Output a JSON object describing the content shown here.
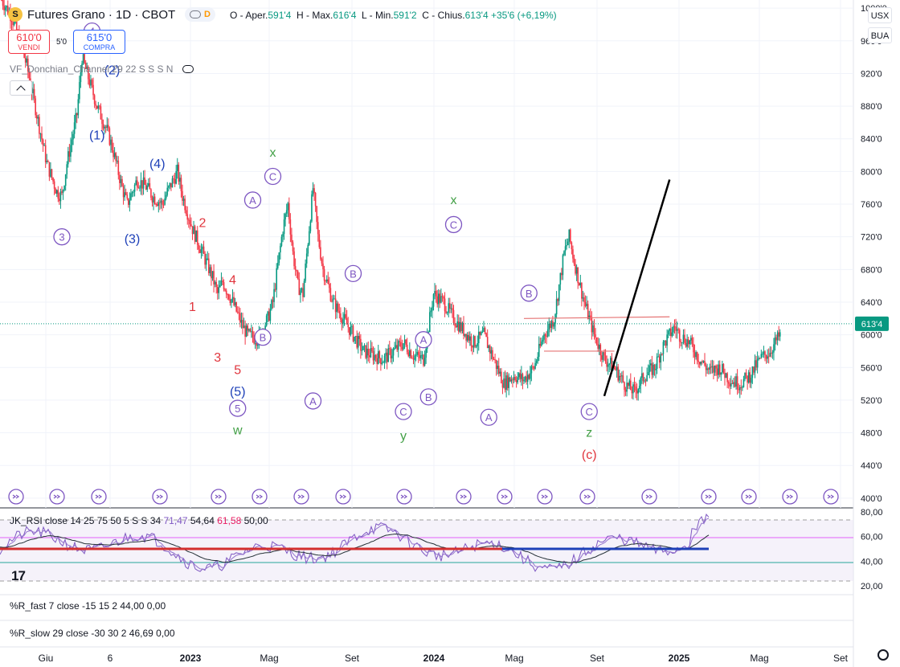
{
  "header": {
    "logo_glyph": "S",
    "title": "Futures Grano · 1D · CBOT",
    "source_badge": "D",
    "ohlc": {
      "open_label": "O - Aper.",
      "open": "591'4",
      "high_label": "H - Max.",
      "high": "616'4",
      "low_label": "L - Min.",
      "low": "591'2",
      "close_label": "C - Chius.",
      "close": "613'4",
      "change": "+35'6 (+6,19%)"
    }
  },
  "trade": {
    "sell_price": "610'0",
    "sell_label": "VENDI",
    "spread": "5'0",
    "buy_price": "615'0",
    "buy_label": "COMPRA"
  },
  "indicator_label": "VF_Donchian_Channel 29 22 S S S N",
  "currency": "USX",
  "unit": "BUA",
  "colors": {
    "up": "#089981",
    "down": "#f23645",
    "wave_purple": "#7e57c2",
    "wave_blue": "#1e40b8",
    "wave_red": "#e0353d",
    "wave_green": "#43a047",
    "last_price": "#089981"
  },
  "chart_data": {
    "type": "candlestick",
    "y_axis": {
      "ticks": [
        "1000'0",
        "960'0",
        "920'0",
        "880'0",
        "840'0",
        "800'0",
        "760'0",
        "720'0",
        "680'0",
        "640'0",
        "600'0",
        "560'0",
        "520'0",
        "480'0",
        "440'0",
        "400'0"
      ],
      "range": [
        390,
        1010
      ]
    },
    "x_axis": {
      "ticks": [
        "Giu",
        "6",
        "2023",
        "Mag",
        "Set",
        "2024",
        "Mag",
        "Set",
        "2025",
        "Mag",
        "Set"
      ]
    },
    "last_price_label": "613'4",
    "last_price": 613.5,
    "price_path": [
      [
        0,
        1010
      ],
      [
        2,
        990
      ],
      [
        5,
        930
      ],
      [
        7,
        870
      ],
      [
        9,
        810
      ],
      [
        11,
        775
      ],
      [
        12,
        770
      ],
      [
        13,
        810
      ],
      [
        15,
        870
      ],
      [
        16,
        940
      ],
      [
        18,
        900
      ],
      [
        19,
        880
      ],
      [
        21,
        850
      ],
      [
        22,
        830
      ],
      [
        24,
        780
      ],
      [
        25,
        760
      ],
      [
        27,
        790
      ],
      [
        29,
        780
      ],
      [
        30,
        770
      ],
      [
        32,
        760
      ],
      [
        33,
        775
      ],
      [
        35,
        800
      ],
      [
        36,
        770
      ],
      [
        38,
        730
      ],
      [
        40,
        700
      ],
      [
        42,
        670
      ],
      [
        43,
        650
      ],
      [
        44,
        665
      ],
      [
        46,
        640
      ],
      [
        48,
        610
      ],
      [
        49,
        600
      ],
      [
        51,
        595
      ],
      [
        53,
        620
      ],
      [
        54,
        640
      ],
      [
        56,
        730
      ],
      [
        57,
        760
      ],
      [
        58,
        700
      ],
      [
        59,
        660
      ],
      [
        60,
        650
      ],
      [
        62,
        780
      ],
      [
        63,
        720
      ],
      [
        64,
        680
      ],
      [
        66,
        640
      ],
      [
        68,
        620
      ],
      [
        70,
        600
      ],
      [
        72,
        580
      ],
      [
        74,
        575
      ],
      [
        76,
        570
      ],
      [
        78,
        580
      ],
      [
        80,
        590
      ],
      [
        82,
        575
      ],
      [
        84,
        570
      ],
      [
        86,
        650
      ],
      [
        88,
        640
      ],
      [
        90,
        620
      ],
      [
        92,
        605
      ],
      [
        94,
        590
      ],
      [
        96,
        600
      ],
      [
        98,
        570
      ],
      [
        100,
        540
      ],
      [
        102,
        550
      ],
      [
        104,
        545
      ],
      [
        106,
        560
      ],
      [
        108,
        600
      ],
      [
        110,
        620
      ],
      [
        112,
        700
      ],
      [
        113,
        720
      ],
      [
        114,
        690
      ],
      [
        116,
        640
      ],
      [
        118,
        600
      ],
      [
        120,
        570
      ],
      [
        122,
        560
      ],
      [
        124,
        540
      ],
      [
        126,
        530
      ],
      [
        128,
        550
      ],
      [
        130,
        560
      ],
      [
        132,
        590
      ],
      [
        134,
        610
      ],
      [
        135,
        600
      ],
      [
        137,
        590
      ],
      [
        139,
        570
      ],
      [
        141,
        555
      ],
      [
        143,
        560
      ],
      [
        145,
        545
      ],
      [
        147,
        540
      ],
      [
        149,
        550
      ],
      [
        151,
        570
      ],
      [
        153,
        580
      ],
      [
        155,
        600
      ]
    ],
    "wave_labels": [
      {
        "text": "4",
        "style": "circle",
        "color": "purple",
        "x": 18,
        "y": 972
      },
      {
        "text": "(2)",
        "style": "plain",
        "color": "blue",
        "x": 22,
        "y": 925
      },
      {
        "text": "(1)",
        "style": "plain",
        "color": "blue",
        "x": 19,
        "y": 845
      },
      {
        "text": "(4)",
        "style": "plain",
        "color": "blue",
        "x": 31,
        "y": 810
      },
      {
        "text": "3",
        "style": "circle",
        "color": "purple",
        "x": 12,
        "y": 720
      },
      {
        "text": "(3)",
        "style": "plain",
        "color": "blue",
        "x": 26,
        "y": 718
      },
      {
        "text": "2",
        "style": "plain",
        "color": "red",
        "x": 40,
        "y": 738
      },
      {
        "text": "1",
        "style": "plain",
        "color": "red",
        "x": 38,
        "y": 635
      },
      {
        "text": "4",
        "style": "plain",
        "color": "red",
        "x": 46,
        "y": 668
      },
      {
        "text": "3",
        "style": "plain",
        "color": "red",
        "x": 43,
        "y": 573
      },
      {
        "text": "5",
        "style": "plain",
        "color": "red",
        "x": 47,
        "y": 558
      },
      {
        "text": "(5)",
        "style": "plain",
        "color": "blue",
        "x": 47,
        "y": 531
      },
      {
        "text": "5",
        "style": "circle",
        "color": "purple",
        "x": 47,
        "y": 510
      },
      {
        "text": "w",
        "style": "plain",
        "color": "green",
        "x": 47,
        "y": 484
      },
      {
        "text": "A",
        "style": "circle",
        "color": "purple",
        "x": 50,
        "y": 765
      },
      {
        "text": "C",
        "style": "circle",
        "color": "purple",
        "x": 54,
        "y": 794
      },
      {
        "text": "x",
        "style": "plain",
        "color": "green",
        "x": 54,
        "y": 824
      },
      {
        "text": "B",
        "style": "circle",
        "color": "purple",
        "x": 52,
        "y": 597
      },
      {
        "text": "A",
        "style": "circle",
        "color": "purple",
        "x": 62,
        "y": 519
      },
      {
        "text": "B",
        "style": "circle",
        "color": "purple",
        "x": 70,
        "y": 675
      },
      {
        "text": "A",
        "style": "circle",
        "color": "purple",
        "x": 84,
        "y": 594
      },
      {
        "text": "B",
        "style": "circle",
        "color": "purple",
        "x": 85,
        "y": 524
      },
      {
        "text": "C",
        "style": "circle",
        "color": "purple",
        "x": 80,
        "y": 506
      },
      {
        "text": "y",
        "style": "plain",
        "color": "green",
        "x": 80,
        "y": 477
      },
      {
        "text": "C",
        "style": "circle",
        "color": "purple",
        "x": 90,
        "y": 735
      },
      {
        "text": "x",
        "style": "plain",
        "color": "green",
        "x": 90,
        "y": 766
      },
      {
        "text": "A",
        "style": "circle",
        "color": "purple",
        "x": 97,
        "y": 499
      },
      {
        "text": "B",
        "style": "circle",
        "color": "purple",
        "x": 105,
        "y": 651
      },
      {
        "text": "C",
        "style": "circle",
        "color": "purple",
        "x": 117,
        "y": 506
      },
      {
        "text": "z",
        "style": "plain",
        "color": "green",
        "x": 117,
        "y": 481
      },
      {
        "text": "(c)",
        "style": "plain",
        "color": "red",
        "x": 117,
        "y": 454
      }
    ],
    "trend_line": {
      "from": [
        120,
        525
      ],
      "to": [
        133,
        790
      ]
    },
    "resistance_lines": [
      {
        "from": [
          104,
          620
        ],
        "to": [
          133,
          622
        ]
      },
      {
        "from": [
          108,
          580
        ],
        "to": [
          122,
          580
        ]
      }
    ]
  },
  "rsi_pane": {
    "label_name": "JK_RSI close 14 25 75 50 5 S S 34",
    "v1": "71,47",
    "v2": "54,64",
    "v3": "61,58",
    "v4": "50,00",
    "ticks": [
      "80,00",
      "60,00",
      "40,00",
      "20,00"
    ]
  },
  "rfast_pane": {
    "label_name": "%R_fast 7 close -15 15 2",
    "v1": "44,00",
    "v2": "0,00"
  },
  "rslow_pane": {
    "label_name": "%R_slow 29 close -30 30 2",
    "v1": "46,69",
    "v2": "0,00"
  },
  "tv_logo": "17"
}
